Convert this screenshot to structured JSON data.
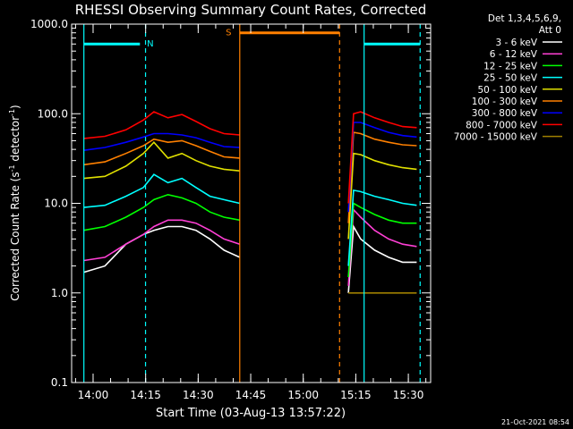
{
  "chart_data": {
    "type": "line",
    "title": "RHESSI Observing Summary Count Rates, Corrected",
    "xlabel": "Start Time (03-Aug-13 13:57:22)",
    "ylabel_prefix": "Corrected Count Rate (s",
    "ylabel_sup1": "-1",
    "ylabel_mid": " detector",
    "ylabel_sup2": "-1",
    "ylabel_suffix": ")",
    "y_scale": "log",
    "ylim": [
      0.1,
      1000
    ],
    "y_ticks": [
      {
        "value": 1000,
        "label": "1000.0"
      },
      {
        "value": 100,
        "label": "100.0"
      },
      {
        "value": 10,
        "label": "10.0"
      },
      {
        "value": 1,
        "label": "1.0"
      },
      {
        "value": 0.1,
        "label": "0.1"
      }
    ],
    "x_unit": "minutes since 13:57:22",
    "xlim": [
      -3.5,
      99
    ],
    "x_ticks": [
      {
        "value": 2.63,
        "label": "14:00"
      },
      {
        "value": 17.63,
        "label": "14:15"
      },
      {
        "value": 32.63,
        "label": "14:30"
      },
      {
        "value": 47.63,
        "label": "14:45"
      },
      {
        "value": 62.63,
        "label": "15:00"
      },
      {
        "value": 77.63,
        "label": "15:15"
      },
      {
        "value": 92.63,
        "label": "15:30"
      }
    ],
    "legend": {
      "placement": "right",
      "header": [
        "Det 1,3,4,5,6,9,",
        "Att 0"
      ]
    },
    "series": [
      {
        "name": "3 - 6 keV",
        "color": "#ffffff",
        "x": [
          0,
          6,
          12,
          17,
          20,
          24,
          28,
          32,
          36,
          40,
          44.5,
          75.5,
          77,
          79,
          83,
          87,
          91,
          95
        ],
        "y": [
          1.7,
          2.0,
          3.5,
          4.5,
          5.0,
          5.5,
          5.5,
          5.0,
          4.0,
          3.0,
          2.5,
          1.0,
          5.5,
          4.0,
          3.0,
          2.5,
          2.2,
          2.2
        ]
      },
      {
        "name": "6 - 12 keV",
        "color": "#ff3fd5",
        "x": [
          0,
          6,
          12,
          17,
          20,
          24,
          28,
          32,
          36,
          40,
          44.5,
          75.5,
          77,
          79,
          83,
          87,
          91,
          95
        ],
        "y": [
          2.3,
          2.5,
          3.5,
          4.5,
          5.5,
          6.5,
          6.5,
          6.0,
          5.0,
          4.0,
          3.5,
          1.2,
          8.5,
          7.0,
          5.0,
          4.0,
          3.5,
          3.3
        ]
      },
      {
        "name": "12 - 25 keV",
        "color": "#00ff00",
        "x": [
          0,
          6,
          12,
          17,
          20,
          24,
          28,
          32,
          36,
          40,
          44.5,
          75.5,
          77,
          79,
          83,
          87,
          91,
          95
        ],
        "y": [
          5.0,
          5.5,
          7.0,
          9.0,
          11.0,
          12.5,
          11.5,
          10.0,
          8.0,
          7.0,
          6.5,
          1.5,
          10.0,
          9.0,
          7.5,
          6.5,
          6.0,
          6.0
        ]
      },
      {
        "name": "25 - 50 keV",
        "color": "#00ffff",
        "x": [
          0,
          6,
          12,
          17,
          20,
          24,
          28,
          32,
          36,
          40,
          44.5,
          75.5,
          77,
          79,
          83,
          87,
          91,
          95
        ],
        "y": [
          9.0,
          9.5,
          12.0,
          15.0,
          21.0,
          17.0,
          19.0,
          15.0,
          12.0,
          11.0,
          10.0,
          2.0,
          14.0,
          13.5,
          12.0,
          11.0,
          10.0,
          9.5
        ]
      },
      {
        "name": "50 - 100 keV",
        "color": "#e0e000",
        "x": [
          0,
          6,
          12,
          17,
          20,
          24,
          28,
          32,
          36,
          40,
          44.5,
          75.5,
          77,
          79,
          83,
          87,
          91,
          95
        ],
        "y": [
          19.0,
          20.0,
          26.0,
          36.0,
          48.0,
          32.0,
          36.0,
          30.0,
          26.0,
          24.0,
          23.0,
          4.0,
          36.0,
          35.0,
          30.0,
          27.0,
          25.0,
          24.0
        ]
      },
      {
        "name": "100 - 300 keV",
        "color": "#ff8000",
        "x": [
          0,
          6,
          12,
          17,
          20,
          24,
          28,
          32,
          36,
          40,
          44.5,
          75.5,
          77,
          79,
          83,
          87,
          91,
          95
        ],
        "y": [
          27.0,
          29.0,
          36.0,
          44.0,
          52.0,
          48.0,
          50.0,
          44.0,
          38.0,
          33.0,
          32.0,
          6.0,
          62.0,
          60.0,
          52.0,
          48.0,
          45.0,
          44.0
        ]
      },
      {
        "name": "300 - 800 keV",
        "color": "#0000ff",
        "x": [
          0,
          6,
          12,
          17,
          20,
          24,
          28,
          32,
          36,
          40,
          44.5,
          75.5,
          77,
          79,
          83,
          87,
          91,
          95
        ],
        "y": [
          39.0,
          42.0,
          48.0,
          55.0,
          60.0,
          60.0,
          58.0,
          54.0,
          48.0,
          43.0,
          42.0,
          8.0,
          80.0,
          80.0,
          70.0,
          62.0,
          57.0,
          55.0
        ]
      },
      {
        "name": "800 - 7000 keV",
        "color": "#ff0000",
        "x": [
          0,
          6,
          12,
          17,
          20,
          24,
          28,
          32,
          36,
          40,
          44.5,
          75.5,
          77,
          79,
          83,
          87,
          91,
          95
        ],
        "y": [
          53.0,
          56.0,
          66.0,
          85.0,
          105.0,
          90.0,
          98.0,
          82.0,
          68.0,
          60.0,
          58.0,
          10.0,
          100.0,
          105.0,
          90.0,
          80.0,
          72.0,
          70.0
        ]
      },
      {
        "name": "7000 - 15000 keV",
        "color": "#a08000",
        "x": [
          0,
          44.5,
          75.5,
          95
        ],
        "y": [
          1.0,
          1.0,
          1.0,
          1.0
        ]
      }
    ],
    "intervals": [
      {
        "label": "N",
        "color": "#00ffff",
        "bar_start": 0,
        "bar_end": 16,
        "y_level": 600,
        "label_x": 18,
        "dashed_x": [
          17.6
        ],
        "solid_x": [
          0
        ]
      },
      {
        "label": "S",
        "color": "#ff8000",
        "bar_start": 44.5,
        "bar_end": 73,
        "y_level": 800,
        "label_x": 40.5,
        "dashed_x": [
          73
        ],
        "solid_x": [
          44.5
        ]
      },
      {
        "label": "",
        "color": "#00ffff",
        "bar_start": 80,
        "bar_end": 96,
        "y_level": 600,
        "label_x": 0,
        "dashed_x": [
          96
        ],
        "solid_x": [
          80
        ]
      }
    ],
    "grid": false,
    "date_stamp": "21-Oct-2021 08:54"
  }
}
